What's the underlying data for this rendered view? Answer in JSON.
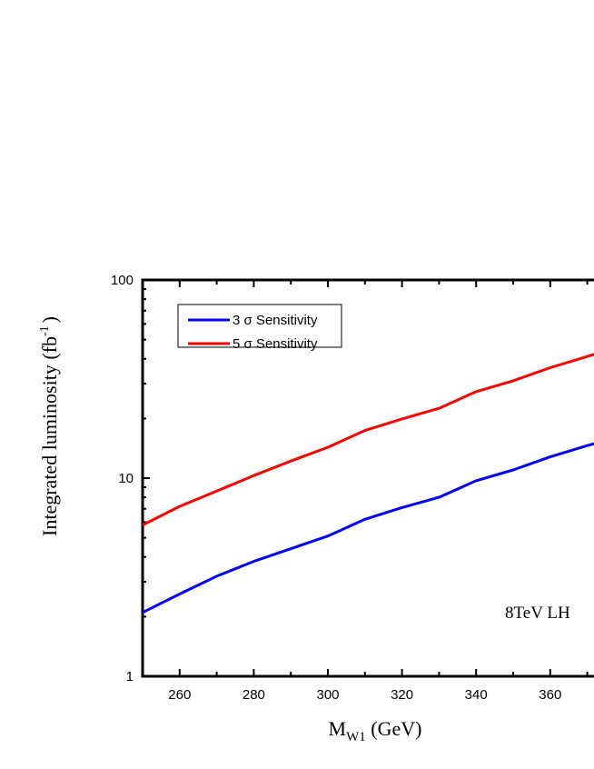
{
  "chart_data": {
    "type": "line",
    "title": "",
    "xlabel": {
      "main": "M",
      "sub": "W1",
      "unit": " (GeV)"
    },
    "ylabel": {
      "main": "Integrated luminosity (fb",
      "sup": "-1",
      "close": ")"
    },
    "xlim": [
      250,
      375
    ],
    "ylim": [
      1,
      100
    ],
    "yscale": "log",
    "x_ticks": [
      "260",
      "280",
      "300",
      "320",
      "340",
      "360"
    ],
    "y_ticks": [
      "1",
      "10",
      "100"
    ],
    "x": [
      250,
      260,
      270,
      280,
      290,
      300,
      310,
      320,
      330,
      340,
      350,
      360,
      370,
      375
    ],
    "series": [
      {
        "name": "3 σ Sensitivity",
        "color": "#0000ff",
        "values": [
          2.1,
          2.6,
          3.2,
          3.8,
          4.4,
          5.1,
          6.2,
          7.1,
          8.0,
          9.7,
          11.0,
          12.8,
          14.6,
          15.5
        ]
      },
      {
        "name": "5 σ Sensitivity",
        "color": "#ff0000",
        "values": [
          5.8,
          7.2,
          8.6,
          10.3,
          12.2,
          14.3,
          17.4,
          19.9,
          22.5,
          27.3,
          31.0,
          36.1,
          41.1,
          44.0
        ]
      }
    ],
    "legend_location": "top-left",
    "annotation": "8TeV LH"
  }
}
